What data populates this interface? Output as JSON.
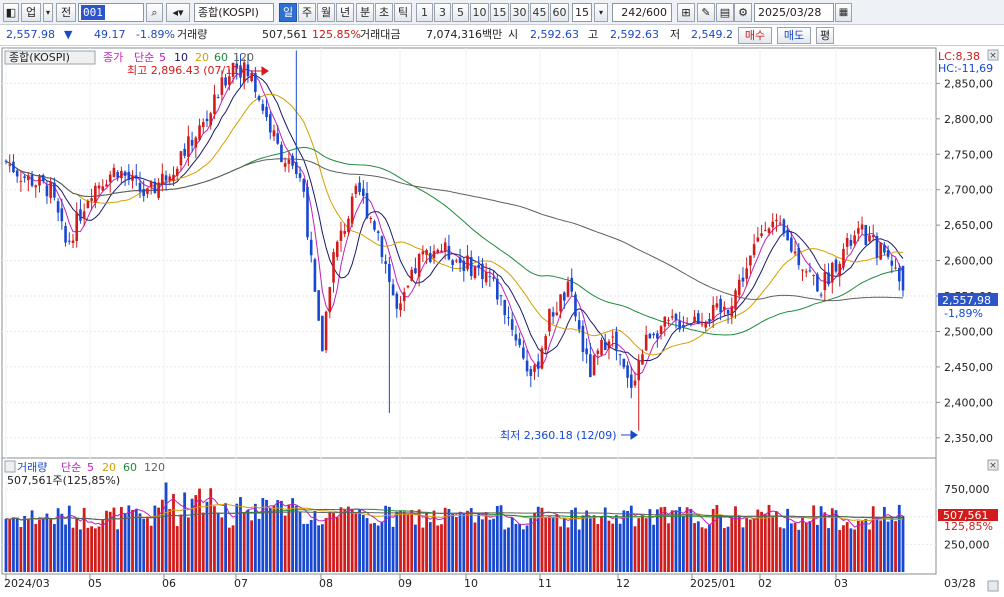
{
  "toolbar": {
    "market": "업",
    "period_type": "전",
    "code": "001",
    "name": "종합(KOSPI)",
    "timeframes": [
      "일",
      "주",
      "월",
      "년",
      "분",
      "초",
      "틱"
    ],
    "selected_timeframe": "일",
    "minute_numbers": [
      "1",
      "3",
      "5",
      "10",
      "15",
      "30",
      "45",
      "60"
    ],
    "interval_value": "15",
    "count": "242/600",
    "date": "2025/03/28"
  },
  "quote": {
    "price": "2,557.98",
    "change_arrow": "▼",
    "change": "49.17",
    "change_pct": "-1.89%",
    "volume_label": "거래량",
    "volume": "507,561",
    "volume_pct": "125.85%",
    "amount_label": "거래대금",
    "amount": "7,074,316백만",
    "open_label": "시",
    "open": "2,592.63",
    "high_label": "고",
    "high": "2,592.63",
    "low_label": "저",
    "low": "2,549.2",
    "buy_label": "매수",
    "sell_label": "매도",
    "even_label": "평"
  },
  "price_chart": {
    "legend_name": "종합(KOSPI)",
    "legend_close": "종가",
    "legend_ma_type": "단순",
    "ma_periods": [
      "5",
      "10",
      "20",
      "60",
      "120"
    ],
    "ma_colors": [
      "#c020c0",
      "#1a1a6a",
      "#d4a000",
      "#1f8a3a",
      "#606060"
    ],
    "lc_text": "LC:8,38",
    "hc_text": "HC:-11,69",
    "max_annotation": "최고 2,896.43 (07/11)",
    "min_annotation": "최저 2,360.18 (12/09)",
    "y_ticks": [
      "2,850,00",
      "2,800,00",
      "2,750,00",
      "2,700,00",
      "2,650,00",
      "2,600,00",
      "2,550,00",
      "2,500,00",
      "2,450,00",
      "2,400,00",
      "2,350,00"
    ],
    "last_price_tag": "2,557,98",
    "last_pct_tag": "-1,89%",
    "up_color": "#d21c1c",
    "down_color": "#1848d0"
  },
  "volume_chart": {
    "legend_name": "거래량",
    "legend_ma_type": "단순",
    "ma_periods": [
      "5",
      "20",
      "60",
      "120"
    ],
    "summary": "507,561주(125,85%)",
    "y_ticks": [
      "750,000",
      "500,000",
      "250,000"
    ],
    "last_volume_tag": "507,561",
    "last_volume_pct_tag": "125,85%"
  },
  "x_axis": {
    "labels": [
      "2024/03",
      "05",
      "06",
      "07",
      "08",
      "09",
      "10",
      "11",
      "12",
      "2025/01",
      "02",
      "03"
    ],
    "right_label": "03/28"
  },
  "chart_data": {
    "type": "candlestick",
    "title": "종합(KOSPI)",
    "x_start": "2024/03",
    "x_end": "2025/03/28",
    "ylim": [
      2330,
      2890
    ],
    "key_points": [
      {
        "date": "2024/03",
        "close": 2740
      },
      {
        "date": "2024/04",
        "close": 2610
      },
      {
        "date": "2024/05",
        "close": 2720
      },
      {
        "date": "2024/06",
        "close": 2700
      },
      {
        "date": "2024/07/11",
        "high": 2896.43
      },
      {
        "date": "2024/08",
        "low": 2385
      },
      {
        "date": "2024/08",
        "close": 2700
      },
      {
        "date": "2024/09",
        "close": 2520
      },
      {
        "date": "2024/10",
        "close": 2600
      },
      {
        "date": "2024/11",
        "close": 2430
      },
      {
        "date": "2024/12/09",
        "low": 2360.18
      },
      {
        "date": "2025/01",
        "close": 2510
      },
      {
        "date": "2025/02",
        "close": 2650
      },
      {
        "date": "2025/03",
        "close": 2580
      },
      {
        "date": "2025/03/28",
        "open": 2592.63,
        "high": 2592.63,
        "low": 2549.2,
        "close": 2557.98
      }
    ],
    "volume_ylim": [
      0,
      950000
    ],
    "last_volume": 507561
  }
}
